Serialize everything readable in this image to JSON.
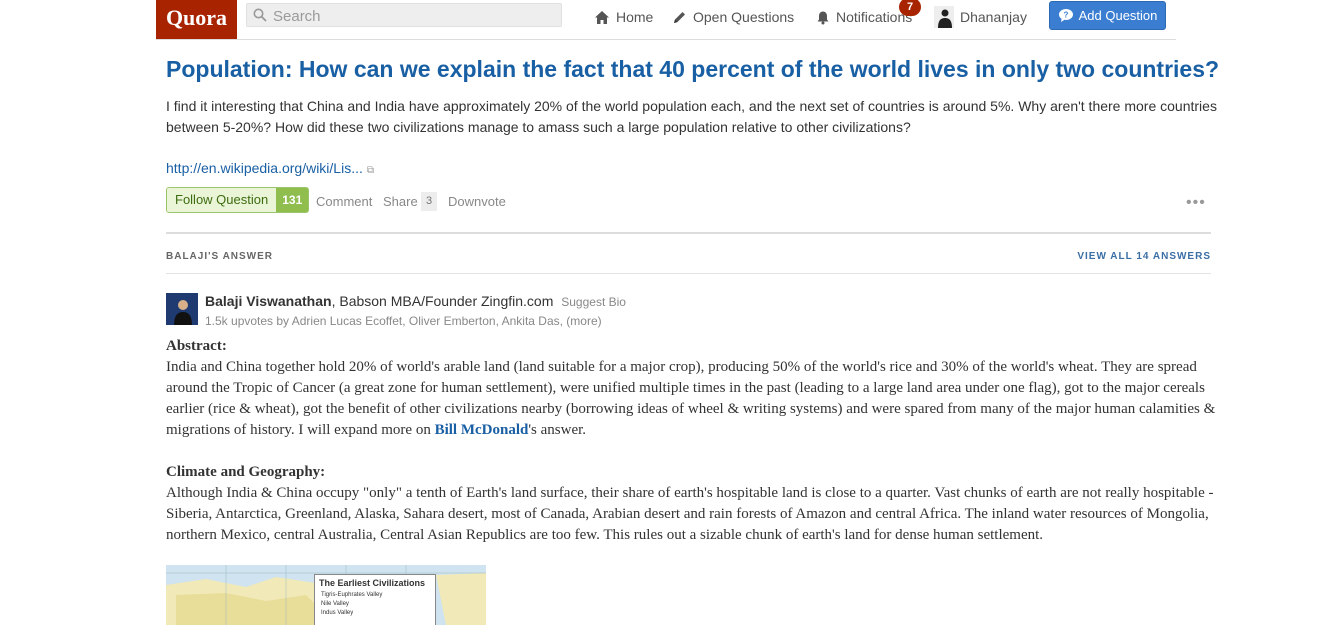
{
  "header": {
    "logo": "Quora",
    "search_placeholder": "Search",
    "nav": {
      "home": "Home",
      "open_questions": "Open Questions",
      "notifications": "Notifications",
      "notifications_count": "7",
      "user": "Dhananjay"
    },
    "add_question": "Add Question"
  },
  "question": {
    "topic": "Population",
    "title_sep": ": ",
    "title": "How can we explain the fact that 40 percent of the world lives in only two countries?",
    "details": "I find it interesting that China and India have approximately 20% of the world population each, and the next set of countries is around 5%. Why aren't there more countries between 5-20%? How did these two civilizations manage to amass such a large population relative to other civilizations?",
    "link": "http://en.wikipedia.org/wiki/Lis...",
    "follow_label": "Follow Question",
    "follow_count": "131",
    "comment": "Comment",
    "share": "Share",
    "share_count": "3",
    "downvote": "Downvote",
    "more": "•••"
  },
  "answer_header": {
    "label": "BALAJI'S ANSWER",
    "view_all": "VIEW ALL 14 ANSWERS"
  },
  "author": {
    "name": "Balaji Viswanathan",
    "bio": ", Babson MBA/Founder Zingfin.com",
    "suggest_bio": "Suggest Bio",
    "upvotes": "1.5k upvotes by Adrien Lucas Ecoffet, Oliver Emberton, Ankita Das, (more)"
  },
  "answer": {
    "abstract_head": "Abstract:",
    "abstract_text": "India and China together hold 20% of world's arable land (land suitable for a major crop), producing 50% of the world's rice and 30% of the world's wheat. They are spread around the Tropic of Cancer (a great zone for human settlement), were unified multiple times in the past (leading to a large land area under one flag), got to the major cereals earlier (rice & wheat), got the benefit of other civilizations nearby (borrowing ideas of wheel & writing systems) and were spared from many of the major human calamities & migrations of history. I will expand more on ",
    "abstract_ref": "Bill McDonald",
    "abstract_tail": "'s answer.",
    "climate_head": "Climate and Geography:",
    "climate_text": "Although India & China occupy \"only\" a tenth of Earth's land surface, their share of earth's hospitable land is close to a quarter. Vast chunks of earth are not really hospitable - Siberia, Antarctica, Greenland, Alaska, Sahara desert, most of Canada, Arabian desert and rain forests of Amazon and central Africa. The inland water resources of Mongolia, northern Mexico, central Australia, Central Asian Republics are too few. This rules out a sizable chunk of earth's land for dense human settlement.",
    "map_title": "The Earliest Civilizations",
    "map_legend": [
      "Tigris-Euphrates Valley",
      "Nile Valley",
      "Indus Valley"
    ]
  },
  "colors": {
    "brand": "#a82400",
    "link": "#195fa4",
    "add_button": "#3b7ed1",
    "follow_green": "#8fbd4e"
  }
}
